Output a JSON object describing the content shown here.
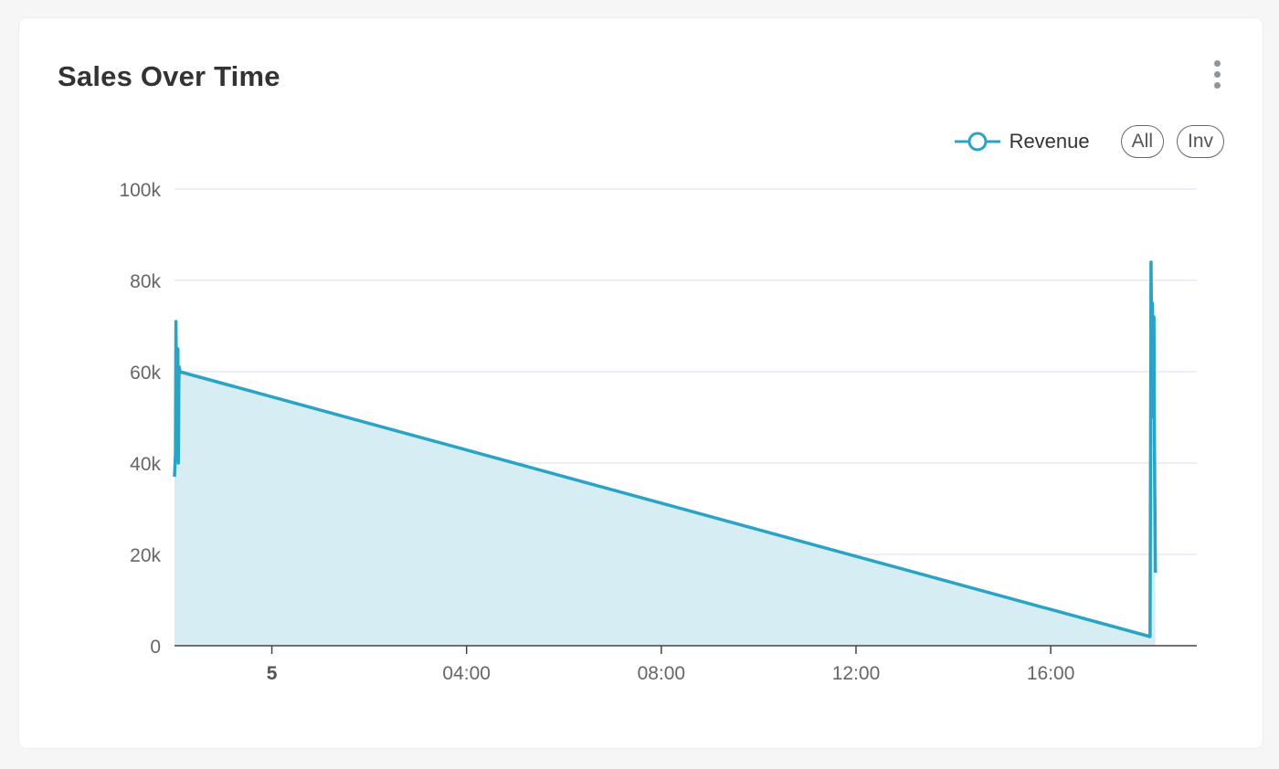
{
  "card": {
    "title": "Sales Over Time"
  },
  "menu": {
    "icon": "more-vertical-icon"
  },
  "legend": {
    "series_label": "Revenue",
    "buttons": [
      "All",
      "Inv"
    ]
  },
  "colors": {
    "line": "#2aa3c4",
    "fill": "#d6edf4",
    "grid": "#e3e8f4",
    "axis": "#444444",
    "tick_text": "#666666"
  },
  "chart_data": {
    "type": "area",
    "title": "Sales Over Time",
    "xlabel": "",
    "ylabel": "",
    "ylim": [
      0,
      100000
    ],
    "y_ticks": [
      0,
      20000,
      40000,
      60000,
      80000,
      100000
    ],
    "y_tick_labels": [
      "0",
      "20k",
      "40k",
      "60k",
      "80k",
      "100k"
    ],
    "x_axis_range_hours": [
      -2.0,
      19.0
    ],
    "x_ticks": [
      {
        "at_hours": 0,
        "label": "5",
        "bold": true
      },
      {
        "at_hours": 4,
        "label": "04:00",
        "bold": false
      },
      {
        "at_hours": 8,
        "label": "08:00",
        "bold": false
      },
      {
        "at_hours": 12,
        "label": "12:00",
        "bold": false
      },
      {
        "at_hours": 16,
        "label": "16:00",
        "bold": false
      }
    ],
    "grid": true,
    "legend_position": "top-right",
    "series": [
      {
        "name": "Revenue",
        "x_hours": [
          -2.0,
          -1.98,
          -1.97,
          -1.95,
          -1.94,
          -1.93,
          -1.92,
          -1.91,
          -1.9,
          -1.89,
          18.04,
          18.05,
          18.06,
          18.07,
          18.08,
          18.09,
          18.1,
          18.11,
          18.12,
          18.13,
          18.14,
          18.15
        ],
        "values": [
          37000,
          42000,
          71000,
          48000,
          60000,
          65000,
          40000,
          58000,
          61000,
          60000,
          2000,
          40000,
          84000,
          70000,
          52000,
          75000,
          60000,
          50000,
          72000,
          45000,
          30000,
          16000
        ]
      }
    ]
  }
}
